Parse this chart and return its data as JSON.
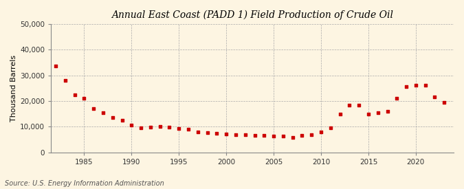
{
  "title": "Annual East Coast (PADD 1) Field Production of Crude Oil",
  "ylabel": "Thousand Barrels",
  "source": "Source: U.S. Energy Information Administration",
  "background_color": "#FDF5E2",
  "marker_color": "#CC0000",
  "grid_color": "#AAAAAA",
  "years": [
    1982,
    1983,
    1984,
    1985,
    1986,
    1987,
    1988,
    1989,
    1990,
    1991,
    1992,
    1993,
    1994,
    1995,
    1996,
    1997,
    1998,
    1999,
    2000,
    2001,
    2002,
    2003,
    2004,
    2005,
    2006,
    2007,
    2008,
    2009,
    2010,
    2011,
    2012,
    2013,
    2014,
    2015,
    2016,
    2017,
    2018,
    2019,
    2020,
    2021,
    2022,
    2023
  ],
  "values": [
    33500,
    28000,
    22500,
    21000,
    17000,
    15500,
    13500,
    12500,
    10500,
    9500,
    9800,
    10200,
    9800,
    9400,
    9000,
    8000,
    7800,
    7500,
    7200,
    7000,
    6800,
    6600,
    6500,
    6400,
    6300,
    5800,
    6500,
    6800,
    8000,
    9500,
    15000,
    18500,
    18500,
    15000,
    15500,
    16000,
    21000,
    25500,
    26000,
    26000,
    21500,
    19500
  ],
  "ylim": [
    0,
    50000
  ],
  "yticks": [
    0,
    10000,
    20000,
    30000,
    40000,
    50000
  ],
  "xlim": [
    1981.5,
    2024
  ],
  "xticks": [
    1985,
    1990,
    1995,
    2000,
    2005,
    2010,
    2015,
    2020
  ],
  "title_fontsize": 10,
  "tick_fontsize": 7.5,
  "ylabel_fontsize": 8
}
